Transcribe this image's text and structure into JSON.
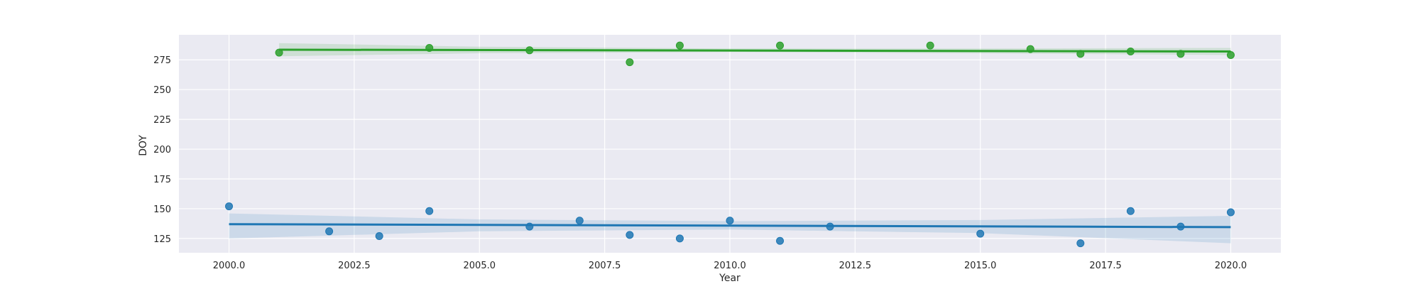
{
  "chart_data": {
    "type": "scatter",
    "title": "",
    "xlabel": "Year",
    "ylabel": "DOY",
    "xlim": [
      1999.0,
      2021.0
    ],
    "ylim": [
      113,
      296
    ],
    "x_ticks": [
      2000.0,
      2002.5,
      2005.0,
      2007.5,
      2010.0,
      2012.5,
      2015.0,
      2017.5,
      2020.0
    ],
    "x_tick_labels": [
      "2000.0",
      "2002.5",
      "2005.0",
      "2007.5",
      "2010.0",
      "2012.5",
      "2015.0",
      "2017.5",
      "2020.0"
    ],
    "y_ticks": [
      125,
      150,
      175,
      200,
      225,
      250,
      275
    ],
    "y_tick_labels": [
      "125",
      "150",
      "175",
      "200",
      "225",
      "250",
      "275"
    ],
    "grid": true,
    "background": "#eaeaf2",
    "series": [
      {
        "color": "#1f77b4",
        "points": [
          {
            "x": 2000,
            "y": 152
          },
          {
            "x": 2002,
            "y": 131
          },
          {
            "x": 2003,
            "y": 127
          },
          {
            "x": 2004,
            "y": 148
          },
          {
            "x": 2006,
            "y": 135
          },
          {
            "x": 2007,
            "y": 140
          },
          {
            "x": 2008,
            "y": 128
          },
          {
            "x": 2009,
            "y": 125
          },
          {
            "x": 2010,
            "y": 140
          },
          {
            "x": 2011,
            "y": 123
          },
          {
            "x": 2012,
            "y": 135
          },
          {
            "x": 2015,
            "y": 129
          },
          {
            "x": 2017,
            "y": 121
          },
          {
            "x": 2018,
            "y": 148
          },
          {
            "x": 2019,
            "y": 135
          },
          {
            "x": 2020,
            "y": 147
          }
        ],
        "trend": {
          "x0": 2000,
          "y0": 137,
          "x1": 2020,
          "y1": 134.5
        },
        "band": {
          "x": [
            2000,
            2005,
            2010,
            2015,
            2020
          ],
          "upper": [
            146,
            141,
            139.5,
            140.5,
            144
          ],
          "lower": [
            125,
            131,
            132.5,
            129.5,
            121
          ]
        }
      },
      {
        "color": "#2ca02c",
        "points": [
          {
            "x": 2001,
            "y": 281
          },
          {
            "x": 2004,
            "y": 285
          },
          {
            "x": 2006,
            "y": 283
          },
          {
            "x": 2008,
            "y": 273
          },
          {
            "x": 2009,
            "y": 287
          },
          {
            "x": 2011,
            "y": 287
          },
          {
            "x": 2014,
            "y": 287
          },
          {
            "x": 2016,
            "y": 284
          },
          {
            "x": 2017,
            "y": 280
          },
          {
            "x": 2018,
            "y": 282
          },
          {
            "x": 2019,
            "y": 280
          },
          {
            "x": 2020,
            "y": 279
          }
        ],
        "trend": {
          "x0": 2001,
          "y0": 283.5,
          "x1": 2020,
          "y1": 282.0
        },
        "band": {
          "x": [
            2001,
            2005,
            2010,
            2015,
            2020
          ],
          "upper": [
            289,
            286,
            284.5,
            284.5,
            285
          ],
          "lower": [
            278,
            280.5,
            281.5,
            280.5,
            279
          ]
        }
      }
    ]
  }
}
